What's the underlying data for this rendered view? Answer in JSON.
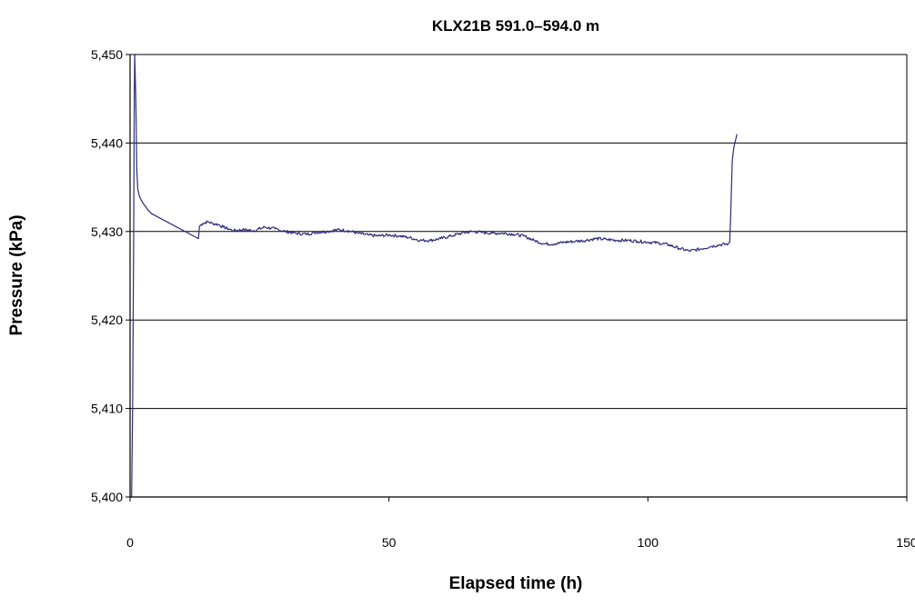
{
  "chart_data": {
    "type": "line",
    "title": "KLX21B 591.0–594.0 m",
    "xlabel": "Elapsed time (h)",
    "ylabel": "Pressure (kPa)",
    "xlim": [
      0,
      150
    ],
    "ylim": [
      5400,
      5450
    ],
    "x_ticks": [
      0,
      50,
      100,
      150
    ],
    "x_tick_labels": [
      "0",
      "50",
      "100",
      "150"
    ],
    "y_ticks": [
      5400,
      5410,
      5420,
      5430,
      5440,
      5450
    ],
    "y_tick_labels": [
      "5,400",
      "5,410",
      "5,420",
      "5,430",
      "5,440",
      "5,450"
    ],
    "grid": "horizontal",
    "legend": "none",
    "series": [
      {
        "color": "#2b2b7a",
        "points": [
          [
            0.3,
            5400.0
          ],
          [
            0.5,
            5410.0
          ],
          [
            0.7,
            5430.0
          ],
          [
            0.8,
            5445.0
          ],
          [
            0.9,
            5450.0
          ],
          [
            1.1,
            5445.0
          ],
          [
            1.3,
            5437.0
          ],
          [
            1.5,
            5434.8
          ],
          [
            1.8,
            5434.0
          ],
          [
            2.1,
            5433.6
          ],
          [
            2.5,
            5433.2
          ],
          [
            3.0,
            5432.8
          ],
          [
            3.5,
            5432.4
          ],
          [
            4.2,
            5432.0
          ],
          [
            13.2,
            5429.2
          ],
          [
            13.4,
            5430.6
          ],
          [
            14.0,
            5430.9
          ],
          [
            15.0,
            5431.1
          ],
          [
            16.0,
            5430.9
          ],
          [
            17.0,
            5430.8
          ],
          [
            18.0,
            5430.5
          ],
          [
            19.0,
            5430.3
          ],
          [
            20.0,
            5430.1
          ],
          [
            22.0,
            5430.2
          ],
          [
            24.0,
            5430.1
          ],
          [
            26.0,
            5430.5
          ],
          [
            28.0,
            5430.3
          ],
          [
            30.0,
            5430.0
          ],
          [
            32.0,
            5429.8
          ],
          [
            34.0,
            5429.7
          ],
          [
            36.0,
            5429.9
          ],
          [
            38.0,
            5430.0
          ],
          [
            40.0,
            5430.2
          ],
          [
            42.0,
            5430.1
          ],
          [
            44.0,
            5429.8
          ],
          [
            46.0,
            5429.6
          ],
          [
            48.0,
            5429.5
          ],
          [
            50.0,
            5429.6
          ],
          [
            52.0,
            5429.5
          ],
          [
            54.0,
            5429.3
          ],
          [
            56.0,
            5429.0
          ],
          [
            58.0,
            5429.0
          ],
          [
            60.0,
            5429.2
          ],
          [
            62.0,
            5429.5
          ],
          [
            64.0,
            5429.8
          ],
          [
            66.0,
            5430.0
          ],
          [
            68.0,
            5429.9
          ],
          [
            70.0,
            5429.8
          ],
          [
            72.0,
            5429.8
          ],
          [
            74.0,
            5429.7
          ],
          [
            76.0,
            5429.5
          ],
          [
            78.0,
            5429.0
          ],
          [
            80.0,
            5428.6
          ],
          [
            82.0,
            5428.6
          ],
          [
            84.0,
            5428.8
          ],
          [
            86.0,
            5428.9
          ],
          [
            88.0,
            5429.0
          ],
          [
            90.0,
            5429.2
          ],
          [
            92.0,
            5429.1
          ],
          [
            94.0,
            5429.0
          ],
          [
            96.0,
            5429.0
          ],
          [
            98.0,
            5428.9
          ],
          [
            100.0,
            5428.8
          ],
          [
            102.0,
            5428.7
          ],
          [
            104.0,
            5428.5
          ],
          [
            106.0,
            5428.1
          ],
          [
            108.0,
            5427.8
          ],
          [
            110.0,
            5428.0
          ],
          [
            112.0,
            5428.3
          ],
          [
            114.0,
            5428.5
          ],
          [
            115.5,
            5428.6
          ],
          [
            115.8,
            5428.8
          ],
          [
            116.0,
            5432.0
          ],
          [
            116.3,
            5438.0
          ],
          [
            116.6,
            5439.5
          ],
          [
            117.0,
            5440.5
          ],
          [
            117.2,
            5441.0
          ]
        ]
      }
    ]
  }
}
